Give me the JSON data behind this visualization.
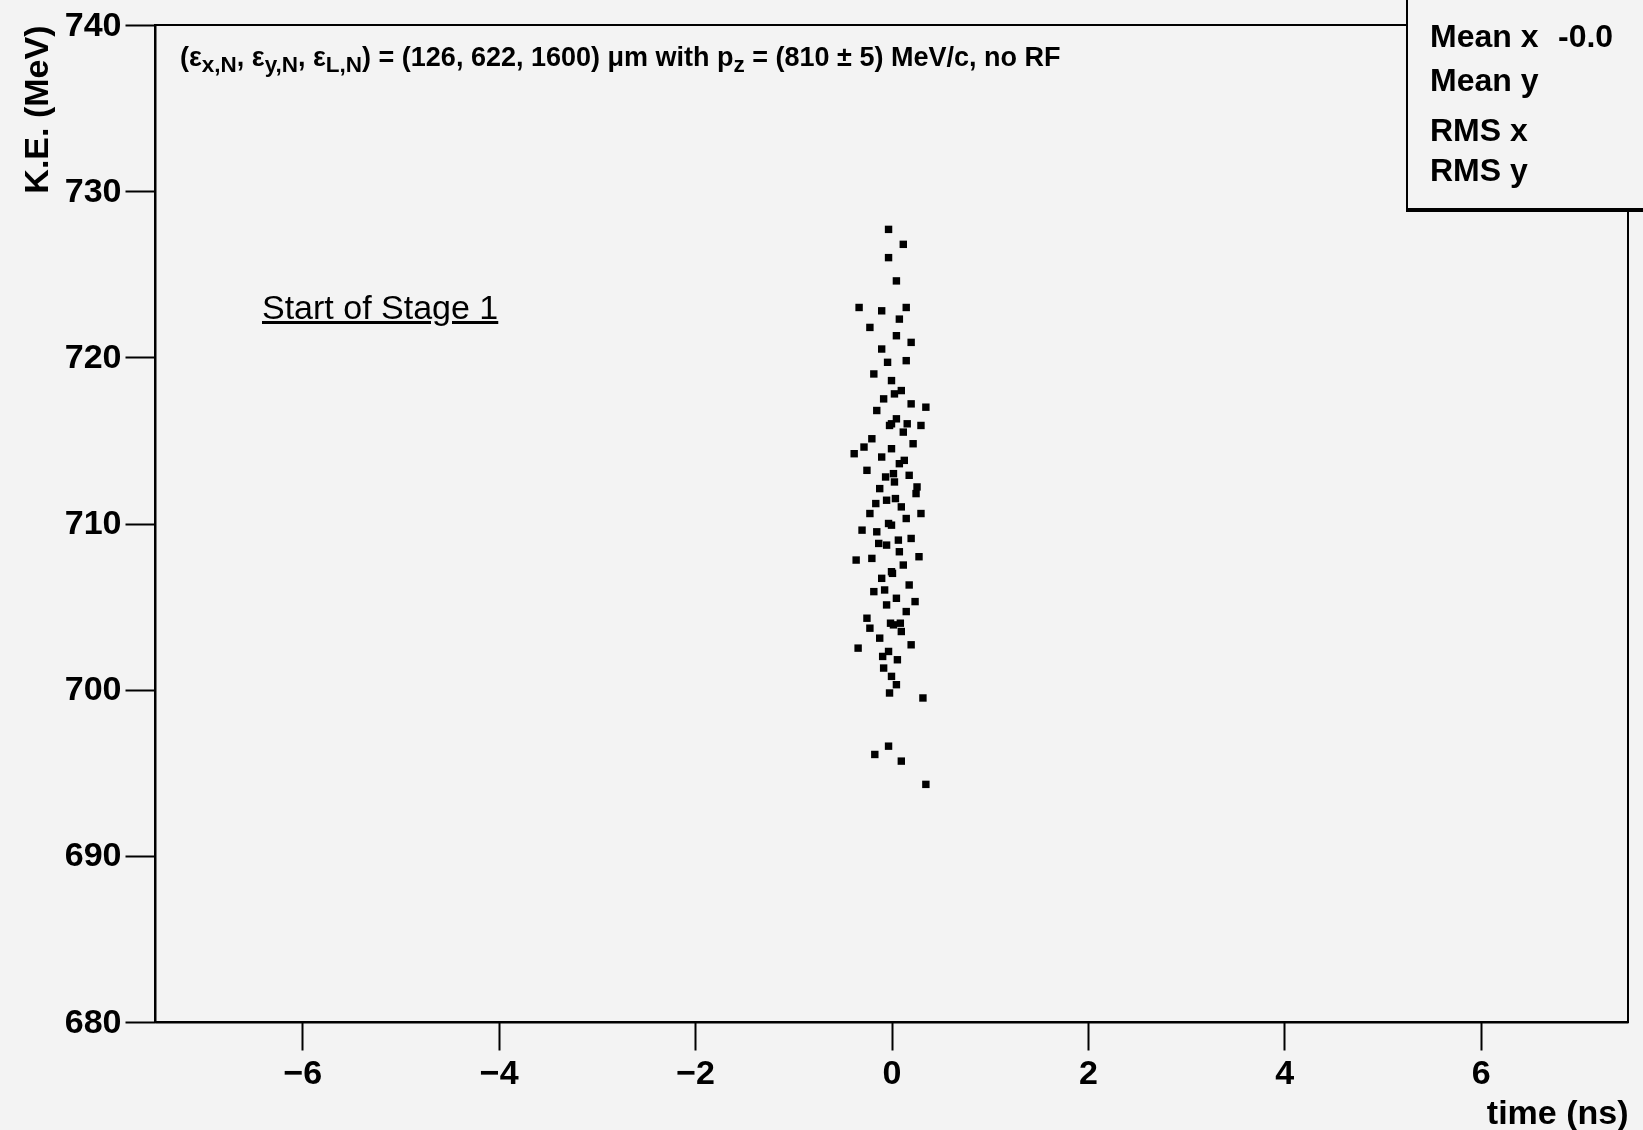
{
  "chart_data": {
    "type": "scatter",
    "xlabel": "time (ns)",
    "ylabel": "K.E. (MeV)",
    "annotations": [
      "(ε$_{x,N}$, ε$_{y,N}$, ε$_{L,N}$) = (126, 622, 1600) μm with p$_{z}$ = (810 ± 5) MeV/c, no RF",
      "Start of Stage 1",
      "Mean x",
      "-0.0",
      "Mean y",
      "RMS x",
      "RMS y"
    ],
    "xlim": [
      -7.5,
      7.5
    ],
    "xticks": [
      -6,
      -4,
      -2,
      0,
      2,
      4,
      6
    ],
    "ylim": [
      680,
      740
    ],
    "yticks": [
      680,
      690,
      700,
      710,
      720,
      730,
      740
    ],
    "grid": false,
    "marker": "square",
    "x": [
      -0.1,
      0.05,
      0.15,
      -0.18,
      0.0,
      0.1,
      -0.08,
      0.2,
      -0.15,
      0.05,
      -0.02,
      0.12,
      -0.2,
      0.22,
      0.0,
      -0.1,
      0.08,
      -0.25,
      0.18,
      0.03,
      -0.12,
      0.25,
      -0.05,
      0.1,
      -0.22,
      0.15,
      0.0,
      -0.15,
      0.2,
      -0.05,
      0.08,
      -0.2,
      0.12,
      0.0,
      -0.1,
      0.18,
      -0.18,
      0.05,
      -0.05,
      0.15,
      -0.25,
      0.02,
      0.1,
      -0.12,
      0.2,
      -0.03,
      0.06,
      -0.08,
      0.0,
      0.05,
      -0.02,
      0.0,
      0.02,
      -0.03,
      0.01,
      -0.01,
      0.04,
      -0.06,
      0.07,
      -0.07,
      0.03,
      -0.04,
      0.09,
      -0.09,
      0.13,
      -0.13,
      0.16,
      -0.16,
      0.26,
      -0.28,
      0.28,
      -0.3,
      0.24,
      -0.22,
      -0.03,
      0.12,
      -0.03,
      0.05,
      -0.33,
      0.15,
      -0.22,
      0.35,
      -0.38,
      -0.36,
      -0.34,
      0.32,
      -0.03,
      -0.17,
      0.1,
      0.35,
      0.08,
      -0.1,
      0.2,
      0.3,
      0.3
    ],
    "series": [
      {
        "color": "#000000",
        "values": [
          720.5,
          721.3,
          719.8,
          719.0,
          718.6,
          718.0,
          717.5,
          717.2,
          716.8,
          716.3,
          715.9,
          715.5,
          715.1,
          714.8,
          714.5,
          714.0,
          713.6,
          713.2,
          712.9,
          712.5,
          712.1,
          711.8,
          711.4,
          711.0,
          710.6,
          710.3,
          709.9,
          709.5,
          709.1,
          708.7,
          708.3,
          707.9,
          707.5,
          707.1,
          706.7,
          706.3,
          705.9,
          705.5,
          705.1,
          704.7,
          704.3,
          703.9,
          703.5,
          703.1,
          702.7,
          702.3,
          701.8,
          701.3,
          700.8,
          700.3,
          699.8,
          716.0,
          713.0,
          710.0,
          707.0,
          704.0,
          711.5,
          712.8,
          709.0,
          706.0,
          717.8,
          719.7,
          704.0,
          702.0,
          713.8,
          708.8,
          716.0,
          711.2,
          712.2,
          714.6,
          708.0,
          709.6,
          705.3,
          703.7,
          727.7,
          726.8,
          726.0,
          724.6,
          723.0,
          723.0,
          721.8,
          717.0,
          714.2,
          707.8,
          702.5,
          699.5,
          696.6,
          696.1,
          695.7,
          694.3,
          722.3,
          722.8,
          720.9,
          715.9,
          710.6
        ]
      }
    ]
  }
}
